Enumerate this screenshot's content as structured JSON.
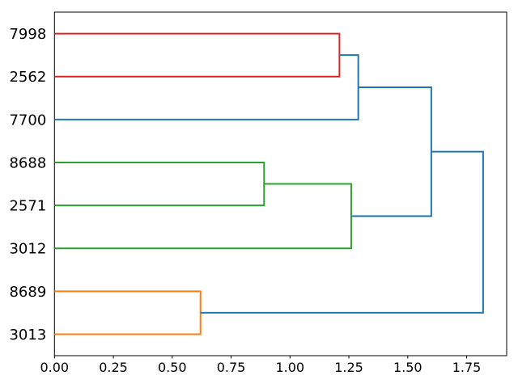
{
  "figure": {
    "background": "#ffffff",
    "border_color": "#000000"
  },
  "chart_data": {
    "type": "dendrogram",
    "orientation": "horizontal-root-right",
    "title": "",
    "xlabel": "",
    "ylabel": "",
    "grid": false,
    "legend": false,
    "xlim": [
      0,
      1.92
    ],
    "ylim": [
      0,
      80
    ],
    "x_ticks": [
      0,
      0.25,
      0.5,
      0.75,
      1.0,
      1.25,
      1.5,
      1.75
    ],
    "x_tick_labels": [
      "0.00",
      "0.25",
      "0.50",
      "0.75",
      "1.00",
      "1.25",
      "1.50",
      "1.75"
    ],
    "leaves": [
      {
        "label": "7998",
        "pos": 75
      },
      {
        "label": "2562",
        "pos": 65
      },
      {
        "label": "7700",
        "pos": 55
      },
      {
        "label": "8688",
        "pos": 45
      },
      {
        "label": "2571",
        "pos": 35
      },
      {
        "label": "3012",
        "pos": 25
      },
      {
        "label": "8689",
        "pos": 15
      },
      {
        "label": "3013",
        "pos": 5
      }
    ],
    "links": [
      {
        "color": "#ff7f0e",
        "merge_x": 0.62,
        "a": {
          "x": 0,
          "y": 15
        },
        "b": {
          "x": 0,
          "y": 5
        }
      },
      {
        "color": "#2ca02c",
        "merge_x": 0.89,
        "a": {
          "x": 0,
          "y": 45
        },
        "b": {
          "x": 0,
          "y": 35
        }
      },
      {
        "color": "#d62728",
        "merge_x": 1.21,
        "a": {
          "x": 0,
          "y": 75
        },
        "b": {
          "x": 0,
          "y": 65
        }
      },
      {
        "color": "#2ca02c",
        "merge_x": 1.26,
        "a": {
          "x": 0.89,
          "y": 40
        },
        "b": {
          "x": 0,
          "y": 25
        }
      },
      {
        "color": "#1f77b4",
        "merge_x": 1.29,
        "a": {
          "x": 1.21,
          "y": 70
        },
        "b": {
          "x": 0,
          "y": 55
        }
      },
      {
        "color": "#1f77b4",
        "merge_x": 1.6,
        "a": {
          "x": 1.29,
          "y": 62.5
        },
        "b": {
          "x": 1.26,
          "y": 32.5
        }
      },
      {
        "color": "#1f77b4",
        "merge_x": 1.82,
        "a": {
          "x": 1.6,
          "y": 47.5
        },
        "b": {
          "x": 0.62,
          "y": 10
        }
      }
    ],
    "colors": {
      "above_threshold_link": "#1f77b4",
      "cluster_red": "#d62728",
      "cluster_green": "#2ca02c",
      "cluster_orange": "#ff7f0e"
    }
  }
}
